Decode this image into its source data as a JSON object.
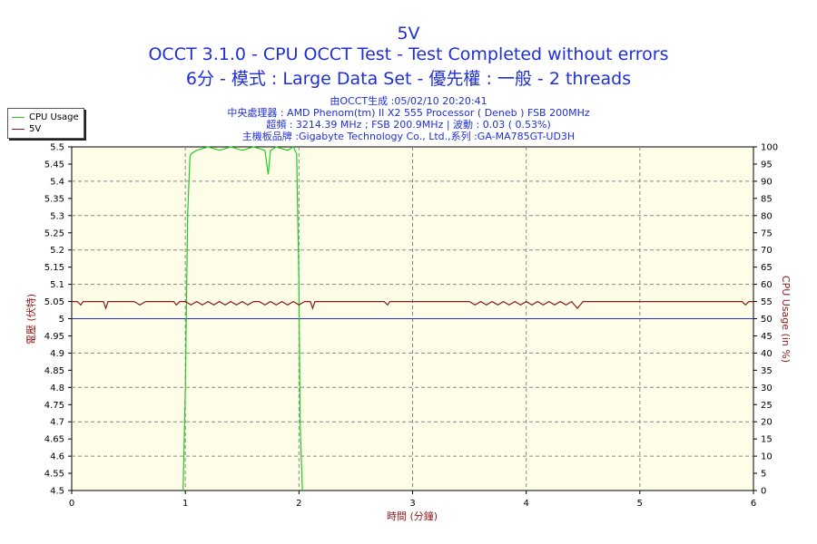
{
  "title": {
    "line1": "5V",
    "line2": "OCCT 3.1.0 - CPU OCCT Test - Test Completed without errors",
    "line3": "6分 - 模式 : Large Data Set - 優先權 : 一般 - 2 threads"
  },
  "info": {
    "line1": "由OCCT生成 :05/02/10 20:20:41",
    "line2": "中央處理器 : AMD Phenom(tm) II X2 555 Processor ( Deneb ) FSB 200MHz",
    "line3": "超頻 : 3214.39 MHz ; FSB 200.9MHz | 波動 : 0.03 ( 0.53%)",
    "line4": "主機板品牌 :Gigabyte Technology Co., Ltd.,系列 :GA-MA785GT-UD3H"
  },
  "legend": [
    {
      "name": "CPU Usage",
      "color": "#22cc22"
    },
    {
      "name": "5V",
      "color": "#8b1a1a"
    }
  ],
  "chart_data": {
    "type": "line",
    "xlabel": "時間 (分鐘)",
    "ylabel_left": "電壓 (伏特)",
    "ylabel_right": "CPU Usage (in %)",
    "xlim": [
      0,
      6
    ],
    "ylim_left": [
      4.5,
      5.5
    ],
    "ylim_right": [
      0,
      100
    ],
    "x_ticks": [
      "0",
      "1",
      "2",
      "3",
      "4",
      "5",
      "6"
    ],
    "y_left_ticks": [
      "4.5",
      "4.55",
      "4.6",
      "4.65",
      "4.7",
      "4.75",
      "4.8",
      "4.85",
      "4.9",
      "4.95",
      "5",
      "5.05",
      "5.1",
      "5.15",
      "5.2",
      "5.25",
      "5.3",
      "5.35",
      "5.4",
      "5.45",
      "5.5"
    ],
    "y_right_ticks": [
      "0",
      "5",
      "10",
      "15",
      "20",
      "25",
      "30",
      "35",
      "40",
      "45",
      "50",
      "55",
      "60",
      "65",
      "70",
      "75",
      "80",
      "85",
      "90",
      "95",
      "100"
    ],
    "grid": true,
    "reference_line": {
      "axis": "left",
      "y": 5.0,
      "color": "#1f2fd6"
    },
    "series": [
      {
        "name": "CPU Usage",
        "axis": "right",
        "color": "#22cc22",
        "x": [
          0.98,
          1.0,
          1.02,
          1.04,
          1.05,
          1.1,
          1.2,
          1.3,
          1.4,
          1.5,
          1.6,
          1.7,
          1.73,
          1.75,
          1.8,
          1.9,
          1.95,
          1.98,
          2.0,
          2.01,
          2.03
        ],
        "y": [
          0,
          30,
          80,
          97,
          98,
          99,
          100,
          99,
          100,
          99,
          100,
          99,
          92,
          99,
          100,
          99,
          100,
          98,
          60,
          20,
          0
        ]
      },
      {
        "name": "5V",
        "axis": "left",
        "color": "#8b1a1a",
        "x": [
          0.0,
          0.05,
          0.08,
          0.1,
          0.28,
          0.3,
          0.32,
          0.55,
          0.6,
          0.65,
          0.9,
          0.92,
          0.95,
          1.0,
          1.05,
          1.1,
          1.15,
          1.2,
          1.25,
          1.3,
          1.35,
          1.4,
          1.45,
          1.5,
          1.55,
          1.6,
          1.65,
          1.7,
          1.75,
          1.8,
          1.85,
          1.9,
          1.95,
          2.0,
          2.05,
          2.1,
          2.12,
          2.14,
          2.2,
          2.75,
          2.78,
          2.8,
          3.4,
          3.5,
          3.55,
          3.6,
          3.65,
          3.7,
          3.75,
          3.8,
          3.85,
          3.9,
          3.95,
          4.0,
          4.05,
          4.1,
          4.15,
          4.2,
          4.25,
          4.3,
          4.35,
          4.4,
          4.45,
          4.5,
          4.9,
          5.9,
          5.93,
          5.96,
          6.0
        ],
        "y": [
          5.05,
          5.05,
          5.04,
          5.05,
          5.05,
          5.03,
          5.05,
          5.05,
          5.04,
          5.05,
          5.05,
          5.04,
          5.05,
          5.05,
          5.04,
          5.05,
          5.04,
          5.05,
          5.04,
          5.05,
          5.04,
          5.05,
          5.04,
          5.05,
          5.04,
          5.05,
          5.05,
          5.04,
          5.05,
          5.04,
          5.05,
          5.04,
          5.05,
          5.04,
          5.05,
          5.05,
          5.03,
          5.05,
          5.05,
          5.05,
          5.04,
          5.05,
          5.05,
          5.05,
          5.04,
          5.05,
          5.04,
          5.05,
          5.04,
          5.05,
          5.04,
          5.05,
          5.04,
          5.05,
          5.04,
          5.05,
          5.04,
          5.05,
          5.04,
          5.05,
          5.04,
          5.05,
          5.03,
          5.05,
          5.05,
          5.05,
          5.04,
          5.05,
          5.05
        ]
      }
    ]
  }
}
